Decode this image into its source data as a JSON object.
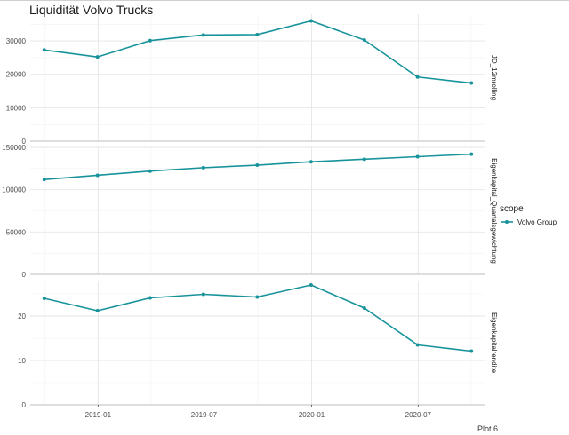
{
  "title": "Liquidität Volvo Trucks",
  "caption": "Plot 6",
  "chart_data": {
    "type": "line",
    "title": "Liquidität Volvo Trucks",
    "x": [
      "2018-10-01",
      "2018-12-31",
      "2019-03-31",
      "2019-06-30",
      "2019-09-30",
      "2019-12-31",
      "2020-03-31",
      "2020-06-30",
      "2020-09-30"
    ],
    "x_ticks": [
      "2019-01",
      "2019-07",
      "2020-01",
      "2020-07"
    ],
    "x_tick_dates": [
      "2019-01-01",
      "2019-07-01",
      "2020-01-01",
      "2020-07-01"
    ],
    "x_range": [
      "2018-09-07",
      "2020-10-24"
    ],
    "grid": true,
    "legend": {
      "title": "scope",
      "position": "right",
      "entries": [
        "Volvo Group"
      ]
    },
    "series_color": "#17939b",
    "facets": [
      {
        "label": "JD_12mrolling",
        "ylim": [
          0,
          38000
        ],
        "y_ticks": [
          0,
          10000,
          20000,
          30000
        ],
        "series": [
          {
            "name": "Volvo Group",
            "values": [
              27300,
              25200,
              30100,
              31800,
              31900,
              36000,
              30300,
              19200,
              17400
            ]
          }
        ]
      },
      {
        "label": "Eigenkapital_Quartalsgewichtung",
        "ylim": [
          0,
          150000
        ],
        "y_ticks": [
          0,
          50000,
          100000,
          150000
        ],
        "series": [
          {
            "name": "Volvo Group",
            "values": [
              112000,
              117000,
              122000,
              126000,
              129000,
              133000,
              136000,
              139000,
              142000
            ]
          }
        ]
      },
      {
        "label": "Eigenkapitalrendite",
        "ylim": [
          0,
          28
        ],
        "y_ticks": [
          0,
          10,
          20
        ],
        "series": [
          {
            "name": "Volvo Group",
            "values": [
              24.0,
              21.2,
              24.1,
              24.9,
              24.3,
              27.0,
              21.8,
              13.5,
              12.1
            ]
          }
        ]
      }
    ]
  }
}
